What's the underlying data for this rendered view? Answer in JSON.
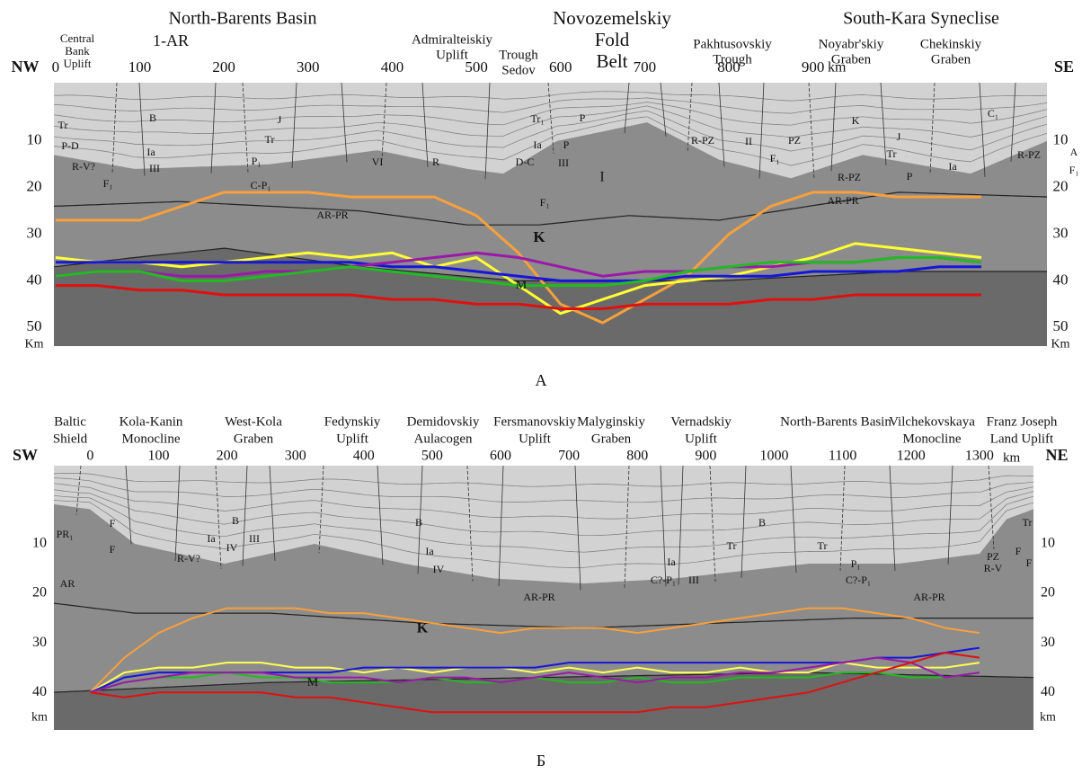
{
  "chart_data": [
    {
      "type": "line",
      "caption": "А",
      "left_end": "NW",
      "right_end": "SE",
      "x_unit": "km",
      "y_unit": "Km",
      "regions": [
        [
          "Central",
          "Bank",
          "Uplift"
        ],
        [
          "North-Barents Basin"
        ],
        [
          "1-AR"
        ],
        [
          "Admiralteiskiy",
          "Uplift"
        ],
        [
          "Trough",
          "Sedov"
        ],
        [
          "Novozemelskiy",
          "Fold",
          "Belt"
        ],
        [
          "Pakhtusovskiy",
          "Trough"
        ],
        [
          "South-Kara Syneclise"
        ],
        [
          "Noyabr'skiy",
          "Graben"
        ],
        [
          "Chekinskiy",
          "Graben"
        ]
      ],
      "labels": [
        "Tr",
        "P-D",
        "R-V?",
        "F₁",
        "B",
        "Ia",
        "III",
        "J",
        "Tr",
        "P₁",
        "C-P₁",
        "VI",
        "R",
        "AR-PR",
        "Tr₁",
        "P",
        "Ia",
        "P",
        "D-C",
        "III",
        "F₁",
        "I",
        "R-PZ",
        "II",
        "PZ",
        "F₁",
        "K",
        "J",
        "Tr",
        "P",
        "R-PZ",
        "AR-PR",
        "C₁",
        "Ia",
        "R-PZ",
        "A",
        "F₁",
        "K",
        "M"
      ],
      "x": [
        0,
        50,
        100,
        150,
        200,
        250,
        300,
        350,
        400,
        450,
        500,
        550,
        600,
        650,
        700,
        750,
        800,
        850,
        900,
        950,
        1000,
        1050,
        1100
      ],
      "xlim": [
        -2,
        1178
      ],
      "xticks": [
        0,
        100,
        200,
        300,
        400,
        500,
        600,
        700,
        800,
        900
      ],
      "ylim": [
        -2.5,
        54
      ],
      "yticks": [
        10,
        20,
        30,
        40,
        50
      ],
      "y_inverted": true,
      "series": [
        {
          "color": "#f7a03c",
          "values": [
            27,
            27,
            27,
            24,
            21,
            21,
            21,
            22,
            22,
            22,
            26,
            34,
            45,
            49,
            44,
            39,
            30,
            24,
            21,
            21,
            22,
            22,
            22
          ]
        },
        {
          "color": "#ffff33",
          "values": [
            35,
            36,
            36,
            37,
            36,
            35,
            34,
            35,
            34,
            37,
            35,
            41,
            47,
            44,
            41,
            40,
            39,
            37,
            35,
            32,
            33,
            34,
            35
          ]
        },
        {
          "color": "#1616d8",
          "values": [
            36,
            36,
            36,
            36,
            36,
            36,
            36,
            36,
            37,
            37,
            38,
            39,
            40,
            40,
            40,
            39,
            39,
            39,
            38,
            38,
            38,
            37,
            37
          ]
        },
        {
          "color": "#9a1aa8",
          "values": [
            39,
            38,
            38,
            39,
            39,
            38,
            38,
            37,
            36,
            35,
            34,
            35,
            37,
            39,
            38,
            38,
            37,
            37,
            36,
            36,
            35,
            35,
            36
          ]
        },
        {
          "color": "#22bb22",
          "values": [
            39,
            38,
            38,
            40,
            40,
            39,
            38,
            37,
            38,
            39,
            40,
            41,
            41,
            41,
            40,
            38,
            37,
            36,
            36,
            36,
            35,
            35,
            36
          ]
        },
        {
          "color": "#e01010",
          "values": [
            41,
            41,
            42,
            42,
            43,
            43,
            43,
            43,
            44,
            44,
            45,
            45,
            46,
            46,
            45,
            45,
            45,
            44,
            44,
            43,
            43,
            43,
            43
          ]
        }
      ]
    },
    {
      "type": "line",
      "caption": "Б",
      "left_end": "SW",
      "right_end": "NE",
      "x_unit": "km",
      "y_unit": "km",
      "regions": [
        [
          "Baltic",
          "Shield"
        ],
        [
          "Kola-Kanin",
          "Monocline"
        ],
        [
          "West-Kola",
          "Graben"
        ],
        [
          "Fedynskiy",
          "Uplift"
        ],
        [
          "Demidovskiy",
          "Aulacogen"
        ],
        [
          "Fersmanovskiy",
          "Uplift"
        ],
        [
          "Malyginskiy",
          "Graben"
        ],
        [
          "Vernadskiy",
          "Uplift"
        ],
        [
          "North-Barents Basin"
        ],
        [
          "Vilchekovskaya",
          "Monocline"
        ],
        [
          "Franz Joseph",
          "Land Uplift"
        ]
      ],
      "labels": [
        "PR₁",
        "F",
        "F",
        "AR",
        "R-V?",
        "Ia",
        "B",
        "IV",
        "III",
        "B",
        "Ia",
        "IV",
        "AR-PR",
        "Ia",
        "C?-P₁",
        "III",
        "Tr",
        "B",
        "Tr",
        "P₁",
        "C?-P₁",
        "AR-PR",
        "Tr",
        "F",
        "PZ",
        "R-V",
        "F",
        "K",
        "M"
      ],
      "x": [
        0,
        50,
        100,
        150,
        200,
        250,
        300,
        350,
        400,
        450,
        500,
        550,
        600,
        650,
        700,
        750,
        800,
        850,
        900,
        950,
        1000,
        1050,
        1100,
        1150,
        1200,
        1250,
        1300
      ],
      "xlim": [
        -53,
        1379
      ],
      "xticks": [
        0,
        100,
        200,
        300,
        400,
        500,
        600,
        700,
        800,
        900,
        1000,
        1100,
        1200,
        1300
      ],
      "ylim": [
        -5.8,
        47.6
      ],
      "yticks": [
        10,
        20,
        30,
        40
      ],
      "y_inverted": true,
      "series": [
        {
          "color": "#f7a03c",
          "values": [
            40,
            33,
            28,
            25,
            23,
            23,
            23,
            24,
            24,
            25,
            26,
            27,
            28,
            27,
            27,
            27,
            28,
            27,
            26,
            25,
            24,
            23,
            23,
            24,
            25,
            27,
            28
          ]
        },
        {
          "color": "#ffff55",
          "values": [
            40,
            36,
            35,
            35,
            34,
            34,
            35,
            35,
            36,
            35,
            36,
            35,
            35,
            36,
            35,
            36,
            35,
            36,
            36,
            35,
            36,
            36,
            34,
            35,
            35,
            35,
            34
          ]
        },
        {
          "color": "#1616d8",
          "values": [
            40,
            37,
            36,
            36,
            36,
            36,
            36,
            36,
            35,
            35,
            35,
            35,
            35,
            35,
            34,
            34,
            34,
            34,
            34,
            34,
            34,
            34,
            34,
            33,
            33,
            32,
            31
          ]
        },
        {
          "color": "#22bb22",
          "values": [
            40,
            38,
            37,
            37,
            36,
            37,
            37,
            38,
            38,
            38,
            37,
            38,
            38,
            37,
            38,
            38,
            37,
            38,
            38,
            37,
            37,
            37,
            36,
            36,
            37,
            37,
            36
          ]
        },
        {
          "color": "#9a1aa8",
          "values": [
            40,
            38,
            37,
            36,
            36,
            36,
            37,
            37,
            37,
            38,
            37,
            37,
            38,
            37,
            36,
            37,
            38,
            37,
            37,
            36,
            36,
            35,
            34,
            33,
            34,
            37,
            36
          ]
        },
        {
          "color": "#e01010",
          "values": [
            40,
            41,
            40,
            40,
            40,
            40,
            41,
            41,
            42,
            43,
            44,
            44,
            44,
            44,
            44,
            44,
            44,
            43,
            43,
            42,
            41,
            40,
            38,
            36,
            34,
            32,
            33
          ]
        }
      ]
    }
  ]
}
